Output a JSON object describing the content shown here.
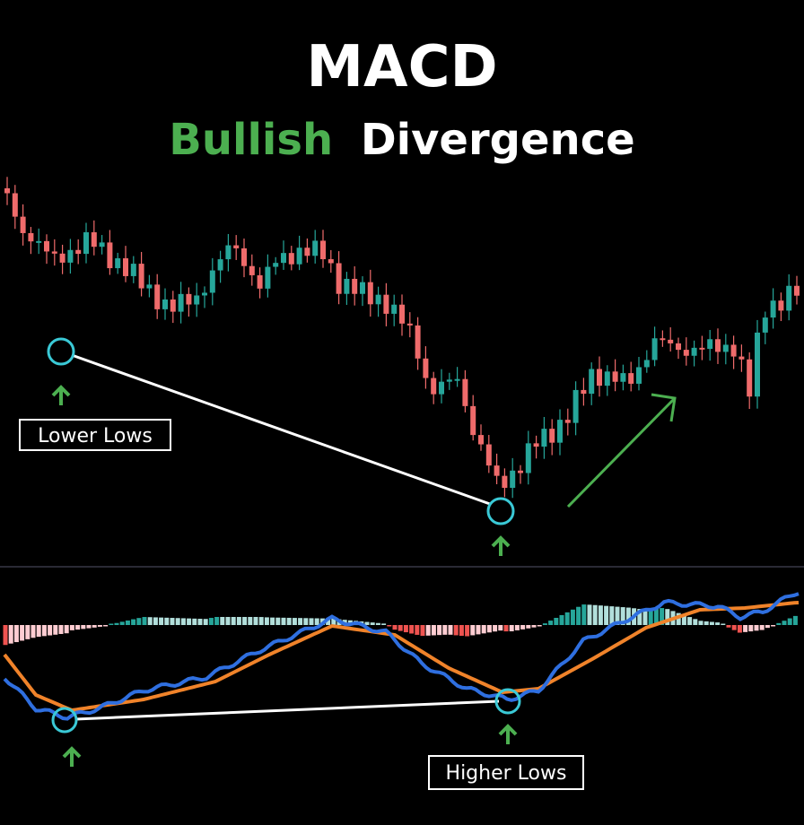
{
  "header": {
    "title": "MACD",
    "subtitle": {
      "highlight": "Bullish",
      "rest": "Divergence"
    }
  },
  "annotations": {
    "price": "Lower Lows",
    "macd": "Higher Lows"
  }
}
